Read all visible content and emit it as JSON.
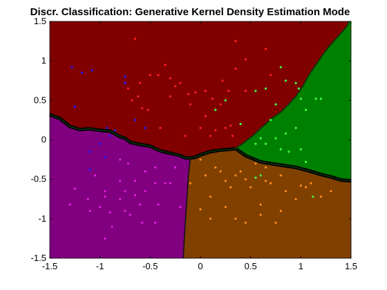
{
  "chart_data": {
    "type": "scatter",
    "title": "Discr. Classification: Generative Kernel Density Estimation Mode",
    "xlabel": "",
    "ylabel": "",
    "xlim": [
      -1.5,
      1.5
    ],
    "ylim": [
      -1.5,
      1.5
    ],
    "xticks": [
      -1.5,
      -1,
      -0.5,
      0,
      0.5,
      1,
      1.5
    ],
    "yticks": [
      -1.5,
      -1,
      -0.5,
      0,
      0.5,
      1,
      1.5
    ],
    "xtick_labels": [
      "-1.5",
      "-1",
      "-0.5",
      "0",
      "0.5",
      "1",
      "1.5"
    ],
    "ytick_labels": [
      "-1.5",
      "-1",
      "-0.5",
      "0",
      "0.5",
      "1",
      "1.5"
    ],
    "grid": false,
    "regions": [
      {
        "class": "blue-class",
        "color": "#800080"
      },
      {
        "class": "red-class",
        "color": "#800000"
      },
      {
        "class": "green-class",
        "color": "#008000"
      },
      {
        "class": "orange-class",
        "color": "#804000"
      }
    ],
    "boundaries": {
      "red_lower": [
        [
          -1.5,
          0.32
        ],
        [
          -1.4,
          0.27
        ],
        [
          -1.3,
          0.17
        ],
        [
          -1.2,
          0.13
        ],
        [
          -1.1,
          0.14
        ],
        [
          -1.0,
          0.12
        ],
        [
          -0.9,
          0.11
        ],
        [
          -0.8,
          0.04
        ],
        [
          -0.75,
          0.02
        ],
        [
          -0.7,
          -0.03
        ],
        [
          -0.6,
          -0.06
        ],
        [
          -0.5,
          -0.08
        ],
        [
          -0.45,
          -0.11
        ],
        [
          -0.4,
          -0.14
        ],
        [
          -0.3,
          -0.17
        ],
        [
          -0.2,
          -0.2
        ],
        [
          -0.15,
          -0.23
        ],
        [
          -0.1,
          -0.23
        ],
        [
          -0.05,
          -0.22
        ],
        [
          0.0,
          -0.19
        ],
        [
          0.1,
          -0.15
        ],
        [
          0.2,
          -0.13
        ],
        [
          0.3,
          -0.12
        ],
        [
          0.35,
          -0.11
        ]
      ],
      "red_right": [
        [
          0.35,
          -0.11
        ],
        [
          0.42,
          -0.05
        ],
        [
          0.52,
          0.05
        ],
        [
          0.58,
          0.12
        ],
        [
          0.65,
          0.2
        ],
        [
          0.72,
          0.28
        ],
        [
          0.8,
          0.35
        ],
        [
          0.88,
          0.45
        ],
        [
          0.95,
          0.55
        ],
        [
          1.02,
          0.68
        ],
        [
          1.08,
          0.82
        ],
        [
          1.15,
          0.95
        ],
        [
          1.22,
          1.08
        ],
        [
          1.28,
          1.18
        ],
        [
          1.35,
          1.28
        ],
        [
          1.42,
          1.38
        ],
        [
          1.46,
          1.44
        ],
        [
          1.48,
          1.5
        ]
      ],
      "orange_green": [
        [
          0.35,
          -0.11
        ],
        [
          0.45,
          -0.2
        ],
        [
          0.6,
          -0.28
        ],
        [
          0.8,
          -0.32
        ],
        [
          0.95,
          -0.35
        ],
        [
          1.1,
          -0.4
        ],
        [
          1.2,
          -0.44
        ],
        [
          1.3,
          -0.47
        ],
        [
          1.4,
          -0.51
        ],
        [
          1.5,
          -0.52
        ]
      ],
      "blue_orange": [
        [
          -0.1,
          -0.23
        ],
        [
          -0.12,
          -0.45
        ],
        [
          -0.13,
          -0.65
        ],
        [
          -0.14,
          -0.85
        ],
        [
          -0.15,
          -1.05
        ],
        [
          -0.16,
          -1.25
        ],
        [
          -0.17,
          -1.5
        ]
      ]
    },
    "series": [
      {
        "color": "#ff2020",
        "points": [
          [
            -0.65,
            1.28
          ],
          [
            -0.72,
            0.65
          ],
          [
            -0.6,
            0.72
          ],
          [
            -0.5,
            0.82
          ],
          [
            -0.42,
            0.82
          ],
          [
            -0.35,
            0.95
          ],
          [
            -0.3,
            0.78
          ],
          [
            -0.25,
            0.68
          ],
          [
            -0.2,
            0.72
          ],
          [
            -0.12,
            0.58
          ],
          [
            -0.05,
            0.6
          ],
          [
            0.05,
            0.62
          ],
          [
            0.12,
            0.52
          ],
          [
            0.22,
            0.75
          ],
          [
            0.28,
            0.62
          ],
          [
            0.35,
            0.9
          ],
          [
            0.35,
            1.25
          ],
          [
            0.45,
            1.02
          ],
          [
            0.65,
            1.15
          ],
          [
            0.7,
            0.82
          ],
          [
            -0.58,
            0.4
          ],
          [
            -0.62,
            0.55
          ],
          [
            -0.4,
            0.15
          ],
          [
            -0.3,
            0.55
          ],
          [
            -0.1,
            0.45
          ],
          [
            0.05,
            0.3
          ],
          [
            0.15,
            0.12
          ],
          [
            0.2,
            0.45
          ],
          [
            0.3,
            0.18
          ],
          [
            0.45,
            0.62
          ],
          [
            -0.52,
            0.38
          ],
          [
            -0.68,
            0.5
          ],
          [
            0.0,
            0.15
          ],
          [
            0.25,
            0.15
          ],
          [
            -0.15,
            0.05
          ],
          [
            0.1,
            0.05
          ],
          [
            0.32,
            0.05
          ]
        ]
      },
      {
        "color": "#2020ff",
        "points": [
          [
            -1.28,
            0.92
          ],
          [
            -1.18,
            0.85
          ],
          [
            -1.08,
            0.88
          ],
          [
            -1.25,
            0.42
          ],
          [
            -0.85,
            0.12
          ],
          [
            -0.93,
            0.15
          ],
          [
            -0.9,
            0.05
          ],
          [
            -0.65,
            0.25
          ],
          [
            -0.55,
            0.15
          ],
          [
            -0.75,
            0.72
          ],
          [
            -1.0,
            -0.05
          ],
          [
            -1.1,
            -0.15
          ],
          [
            -0.95,
            -0.22
          ],
          [
            -1.1,
            -0.38
          ],
          [
            -0.75,
            0.8
          ]
        ]
      },
      {
        "color": "#e020e0",
        "points": [
          [
            -1.1,
            -0.9
          ],
          [
            -1.12,
            -0.75
          ],
          [
            -1.25,
            -0.62
          ],
          [
            -1.3,
            -0.82
          ],
          [
            -1.0,
            -0.85
          ],
          [
            -0.95,
            -0.65
          ],
          [
            -0.9,
            -0.92
          ],
          [
            -0.8,
            -0.52
          ],
          [
            -0.75,
            -0.9
          ],
          [
            -0.8,
            -0.75
          ],
          [
            -0.75,
            -0.65
          ],
          [
            -0.7,
            -0.95
          ],
          [
            -0.65,
            -0.52
          ],
          [
            -0.6,
            -0.82
          ],
          [
            -0.55,
            -0.65
          ],
          [
            -0.45,
            -0.55
          ],
          [
            -0.42,
            -0.82
          ],
          [
            -0.35,
            -0.55
          ],
          [
            -0.3,
            -0.55
          ],
          [
            -0.25,
            -0.35
          ],
          [
            -0.2,
            -0.85
          ],
          [
            -0.58,
            -1.05
          ],
          [
            -0.45,
            -1.05
          ],
          [
            -0.88,
            -1.1
          ],
          [
            -0.95,
            -1.25
          ],
          [
            -0.55,
            -0.4
          ],
          [
            -0.8,
            -0.25
          ],
          [
            -0.72,
            -0.3
          ],
          [
            -1.05,
            -0.45
          ],
          [
            -0.95,
            -0.72
          ],
          [
            -0.65,
            -0.7
          ],
          [
            -0.45,
            -0.35
          ]
        ]
      },
      {
        "color": "#ff8c20",
        "points": [
          [
            0.0,
            -0.25
          ],
          [
            0.05,
            -0.45
          ],
          [
            -0.1,
            -0.55
          ],
          [
            0.1,
            -0.72
          ],
          [
            0.2,
            -0.4
          ],
          [
            0.25,
            -0.52
          ],
          [
            0.35,
            -0.45
          ],
          [
            0.4,
            -0.4
          ],
          [
            0.45,
            -0.5
          ],
          [
            0.5,
            -0.6
          ],
          [
            0.6,
            -0.82
          ],
          [
            0.65,
            -0.35
          ],
          [
            0.7,
            -0.55
          ],
          [
            0.8,
            -0.45
          ],
          [
            0.85,
            -0.65
          ],
          [
            0.95,
            -0.75
          ],
          [
            1.0,
            -0.58
          ],
          [
            1.05,
            -0.6
          ],
          [
            1.1,
            -0.55
          ],
          [
            1.2,
            -0.72
          ],
          [
            1.3,
            -0.65
          ],
          [
            0.0,
            -0.88
          ],
          [
            0.1,
            -1.0
          ],
          [
            0.25,
            -0.85
          ],
          [
            0.35,
            -1.0
          ],
          [
            0.45,
            -1.05
          ],
          [
            0.6,
            -0.95
          ],
          [
            0.75,
            -1.05
          ],
          [
            0.8,
            -0.9
          ],
          [
            0.3,
            -0.6
          ],
          [
            0.15,
            -0.35
          ],
          [
            0.55,
            -0.3
          ],
          [
            0.65,
            -0.52
          ]
        ]
      },
      {
        "color": "#40ff40",
        "points": [
          [
            0.55,
            0.62
          ],
          [
            0.65,
            0.65
          ],
          [
            0.8,
            0.92
          ],
          [
            0.85,
            0.75
          ],
          [
            0.95,
            0.72
          ],
          [
            0.98,
            0.65
          ],
          [
            1.05,
            0.38
          ],
          [
            1.15,
            0.52
          ],
          [
            1.2,
            0.52
          ],
          [
            0.95,
            0.15
          ],
          [
            0.85,
            0.08
          ],
          [
            0.75,
            0.02
          ],
          [
            0.8,
            -0.12
          ],
          [
            0.88,
            -0.15
          ],
          [
            1.0,
            -0.12
          ],
          [
            1.05,
            -0.28
          ],
          [
            0.65,
            -0.05
          ],
          [
            0.6,
            0.02
          ],
          [
            0.55,
            -0.05
          ],
          [
            0.4,
            0.2
          ],
          [
            0.25,
            0.5
          ],
          [
            0.15,
            0.38
          ],
          [
            1.12,
            -0.72
          ],
          [
            0.75,
            0.45
          ],
          [
            0.7,
            0.25
          ],
          [
            1.0,
            0.52
          ],
          [
            0.6,
            -0.45
          ],
          [
            0.55,
            -0.48
          ]
        ]
      }
    ]
  }
}
